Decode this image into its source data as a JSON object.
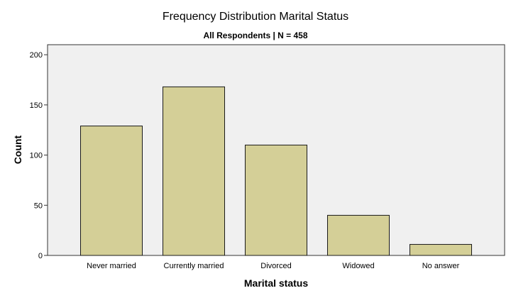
{
  "chart_data": {
    "type": "bar",
    "title": "Frequency Distribution Marital Status",
    "subtitle": "All Respondents | N = 458",
    "xlabel": "Marital status",
    "ylabel": "Count",
    "categories": [
      "Never married",
      "Currently married",
      "Divorced",
      "Widowed",
      "No answer"
    ],
    "values": [
      129,
      168,
      110,
      40,
      11
    ],
    "ylim": [
      0,
      210
    ],
    "yticks": [
      0,
      50,
      100,
      150,
      200
    ],
    "colors": {
      "bar_fill": "#d4cf97",
      "bar_stroke": "#1a1a1a",
      "plot_background": "#f0f0f0"
    },
    "grid": false,
    "legend": "none"
  }
}
